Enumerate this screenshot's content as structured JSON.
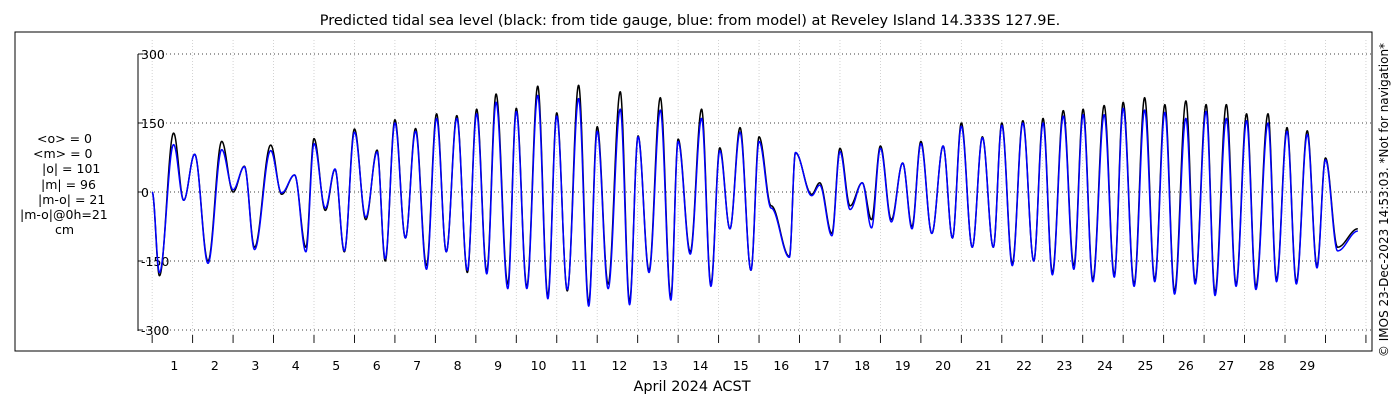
{
  "chart_data": {
    "type": "line",
    "title": "Predicted tidal sea level (black: from tide gauge, blue: from model) at Reveley Island 14.333S 127.9E.",
    "xlabel": "April 2024 ACST",
    "ylabel": "",
    "xlim": [
      -0.35,
      30.15
    ],
    "ylim": [
      -320,
      320
    ],
    "grid": true,
    "x_ticks": [
      1,
      2,
      3,
      4,
      5,
      6,
      7,
      8,
      9,
      10,
      11,
      12,
      13,
      14,
      15,
      16,
      17,
      18,
      19,
      20,
      21,
      22,
      23,
      24,
      25,
      26,
      27,
      28,
      29
    ],
    "y_ticks": [
      300,
      150,
      0,
      -150,
      -300
    ],
    "series": [
      {
        "name": "from tide gauge",
        "color": "#000000",
        "highs": [
          [
            0.53,
            128
          ],
          [
            1.05,
            82
          ],
          [
            1.72,
            110
          ],
          [
            2.28,
            56
          ],
          [
            2.93,
            102
          ],
          [
            3.52,
            37
          ],
          [
            4.0,
            116
          ],
          [
            4.52,
            49
          ],
          [
            5.0,
            137
          ],
          [
            5.56,
            91
          ],
          [
            6.0,
            157
          ],
          [
            6.51,
            138
          ],
          [
            7.03,
            170
          ],
          [
            7.53,
            166
          ],
          [
            8.02,
            180
          ],
          [
            8.5,
            213
          ],
          [
            9.0,
            182
          ],
          [
            9.53,
            230
          ],
          [
            10.0,
            172
          ],
          [
            10.54,
            232
          ],
          [
            11.0,
            142
          ],
          [
            11.57,
            218
          ],
          [
            12.01,
            122
          ],
          [
            12.56,
            205
          ],
          [
            13.0,
            115
          ],
          [
            13.58,
            180
          ],
          [
            14.03,
            96
          ],
          [
            14.53,
            140
          ],
          [
            15.0,
            120
          ],
          [
            15.9,
            85
          ],
          [
            16.5,
            20
          ],
          [
            17.0,
            95
          ],
          [
            17.55,
            20
          ],
          [
            18.0,
            100
          ],
          [
            18.55,
            63
          ],
          [
            19.0,
            110
          ],
          [
            19.55,
            100
          ],
          [
            20.0,
            150
          ],
          [
            20.52,
            120
          ],
          [
            21.0,
            150
          ],
          [
            21.52,
            155
          ],
          [
            22.02,
            160
          ],
          [
            22.52,
            177
          ],
          [
            23.01,
            180
          ],
          [
            23.53,
            188
          ],
          [
            24.0,
            195
          ],
          [
            24.53,
            205
          ],
          [
            25.03,
            190
          ],
          [
            25.55,
            198
          ],
          [
            26.05,
            190
          ],
          [
            26.55,
            190
          ],
          [
            27.05,
            170
          ],
          [
            27.58,
            170
          ],
          [
            28.05,
            140
          ],
          [
            28.55,
            133
          ],
          [
            29.0,
            74
          ]
        ],
        "lows": [
          [
            0.18,
            -182
          ],
          [
            0.78,
            -18
          ],
          [
            1.38,
            -150
          ],
          [
            2.0,
            0
          ],
          [
            2.53,
            -120
          ],
          [
            3.2,
            -5
          ],
          [
            3.8,
            -120
          ],
          [
            4.28,
            -40
          ],
          [
            4.75,
            -130
          ],
          [
            5.28,
            -60
          ],
          [
            5.76,
            -150
          ],
          [
            6.26,
            -100
          ],
          [
            6.78,
            -160
          ],
          [
            7.27,
            -130
          ],
          [
            7.79,
            -175
          ],
          [
            8.27,
            -172
          ],
          [
            8.79,
            -200
          ],
          [
            9.26,
            -205
          ],
          [
            9.78,
            -225
          ],
          [
            10.26,
            -215
          ],
          [
            10.79,
            -240
          ],
          [
            11.27,
            -200
          ],
          [
            11.8,
            -238
          ],
          [
            12.28,
            -170
          ],
          [
            12.82,
            -228
          ],
          [
            13.3,
            -130
          ],
          [
            13.81,
            -200
          ],
          [
            14.28,
            -80
          ],
          [
            14.8,
            -170
          ],
          [
            15.3,
            -30
          ],
          [
            15.75,
            -140
          ],
          [
            16.3,
            -5
          ],
          [
            16.8,
            -90
          ],
          [
            17.25,
            -30
          ],
          [
            17.78,
            -60
          ],
          [
            18.27,
            -60
          ],
          [
            18.78,
            -75
          ],
          [
            19.27,
            -90
          ],
          [
            19.78,
            -100
          ],
          [
            20.27,
            -120
          ],
          [
            20.79,
            -120
          ],
          [
            21.26,
            -155
          ],
          [
            21.79,
            -150
          ],
          [
            22.25,
            -175
          ],
          [
            22.78,
            -160
          ],
          [
            23.25,
            -190
          ],
          [
            23.78,
            -180
          ],
          [
            24.27,
            -200
          ],
          [
            24.78,
            -190
          ],
          [
            25.27,
            -215
          ],
          [
            25.78,
            -195
          ],
          [
            26.27,
            -218
          ],
          [
            26.79,
            -200
          ],
          [
            27.28,
            -205
          ],
          [
            27.79,
            -190
          ],
          [
            28.28,
            -195
          ],
          [
            28.79,
            -160
          ],
          [
            29.3,
            -120
          ],
          [
            29.8,
            -80
          ]
        ]
      },
      {
        "name": "from model",
        "color": "#0000ff",
        "highs": [
          [
            0.53,
            103
          ],
          [
            1.05,
            82
          ],
          [
            1.72,
            92
          ],
          [
            2.28,
            55
          ],
          [
            2.93,
            90
          ],
          [
            3.52,
            37
          ],
          [
            4.0,
            105
          ],
          [
            4.52,
            50
          ],
          [
            5.0,
            130
          ],
          [
            5.56,
            87
          ],
          [
            6.0,
            150
          ],
          [
            6.51,
            132
          ],
          [
            7.03,
            160
          ],
          [
            7.53,
            160
          ],
          [
            8.02,
            170
          ],
          [
            8.5,
            195
          ],
          [
            9.0,
            175
          ],
          [
            9.53,
            210
          ],
          [
            10.0,
            165
          ],
          [
            10.54,
            203
          ],
          [
            11.0,
            132
          ],
          [
            11.57,
            180
          ],
          [
            12.01,
            120
          ],
          [
            12.56,
            178
          ],
          [
            13.0,
            110
          ],
          [
            13.58,
            160
          ],
          [
            14.03,
            90
          ],
          [
            14.53,
            130
          ],
          [
            15.0,
            110
          ],
          [
            15.9,
            86
          ],
          [
            16.5,
            15
          ],
          [
            17.0,
            88
          ],
          [
            17.55,
            20
          ],
          [
            18.0,
            95
          ],
          [
            18.55,
            63
          ],
          [
            19.0,
            105
          ],
          [
            19.55,
            100
          ],
          [
            20.0,
            143
          ],
          [
            20.52,
            118
          ],
          [
            21.0,
            145
          ],
          [
            21.52,
            150
          ],
          [
            22.02,
            150
          ],
          [
            22.52,
            165
          ],
          [
            23.01,
            168
          ],
          [
            23.53,
            168
          ],
          [
            24.0,
            182
          ],
          [
            24.53,
            178
          ],
          [
            25.03,
            173
          ],
          [
            25.55,
            160
          ],
          [
            26.05,
            175
          ],
          [
            26.55,
            160
          ],
          [
            27.05,
            155
          ],
          [
            27.58,
            150
          ],
          [
            28.05,
            132
          ],
          [
            28.55,
            125
          ],
          [
            29.0,
            70
          ]
        ],
        "lows": [
          [
            0.18,
            -175
          ],
          [
            0.78,
            -18
          ],
          [
            1.38,
            -155
          ],
          [
            2.0,
            5
          ],
          [
            2.53,
            -125
          ],
          [
            3.2,
            -2
          ],
          [
            3.8,
            -130
          ],
          [
            4.28,
            -35
          ],
          [
            4.75,
            -128
          ],
          [
            5.28,
            -55
          ],
          [
            5.76,
            -145
          ],
          [
            6.26,
            -100
          ],
          [
            6.78,
            -168
          ],
          [
            7.27,
            -130
          ],
          [
            7.79,
            -170
          ],
          [
            8.27,
            -178
          ],
          [
            8.79,
            -210
          ],
          [
            9.26,
            -210
          ],
          [
            9.78,
            -232
          ],
          [
            10.26,
            -212
          ],
          [
            10.79,
            -248
          ],
          [
            11.27,
            -210
          ],
          [
            11.8,
            -245
          ],
          [
            12.28,
            -175
          ],
          [
            12.82,
            -235
          ],
          [
            13.3,
            -135
          ],
          [
            13.81,
            -205
          ],
          [
            14.28,
            -80
          ],
          [
            14.8,
            -170
          ],
          [
            15.3,
            -35
          ],
          [
            15.75,
            -142
          ],
          [
            16.3,
            -8
          ],
          [
            16.8,
            -95
          ],
          [
            17.25,
            -38
          ],
          [
            17.78,
            -78
          ],
          [
            18.27,
            -65
          ],
          [
            18.78,
            -80
          ],
          [
            19.27,
            -90
          ],
          [
            19.78,
            -100
          ],
          [
            20.27,
            -120
          ],
          [
            20.79,
            -120
          ],
          [
            21.26,
            -160
          ],
          [
            21.79,
            -150
          ],
          [
            22.25,
            -180
          ],
          [
            22.78,
            -168
          ],
          [
            23.25,
            -195
          ],
          [
            23.78,
            -185
          ],
          [
            24.27,
            -205
          ],
          [
            24.78,
            -195
          ],
          [
            25.27,
            -222
          ],
          [
            25.78,
            -200
          ],
          [
            26.27,
            -225
          ],
          [
            26.79,
            -205
          ],
          [
            27.28,
            -212
          ],
          [
            27.79,
            -195
          ],
          [
            28.28,
            -200
          ],
          [
            28.79,
            -165
          ],
          [
            29.3,
            -128
          ],
          [
            29.8,
            -85
          ]
        ]
      }
    ]
  },
  "stats": {
    "o_mean": "<o> = 0",
    "m_mean": "<m> = 0",
    "o_abs": "|o| = 101",
    "m_abs": "|m| = 96",
    "m_minus_o": "|m-o| = 21",
    "m_minus_o_0h": "|m-o|@0h=21",
    "unit": "cm"
  },
  "copyright": "© IMOS 23-Dec-2023 14:53:03. *Not for navigation*"
}
